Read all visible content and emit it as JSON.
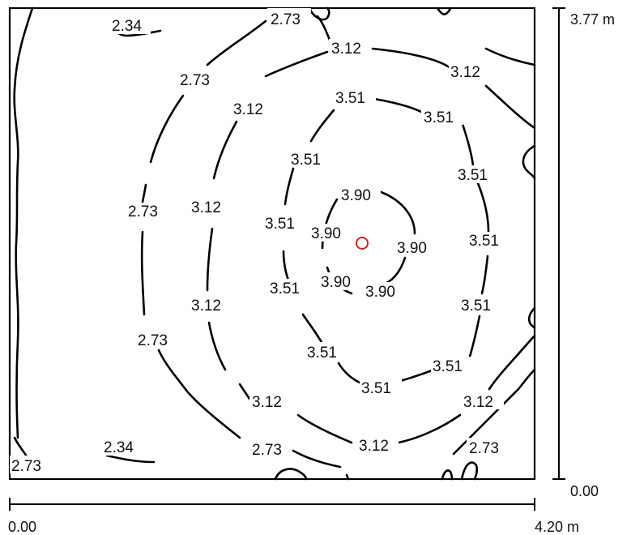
{
  "diagram": {
    "dimensions": {
      "width_start": "0.00",
      "width_end": "4.20 m",
      "height_start": "0.00",
      "height_end": "3.77 m"
    },
    "contour_levels": [
      "2.34",
      "2.73",
      "3.12",
      "3.51",
      "3.90"
    ],
    "labels": {
      "c234_top": "2.34",
      "c234_bottom": "2.34",
      "c273_top": "2.73",
      "c273_left_upper": "2.73",
      "c273_left_mid": "2.73",
      "c273_left_lower": "2.73",
      "c273_bottom_mid": "2.73",
      "c273_bottom_right": "2.73",
      "c273_bottom_left": "2.73",
      "c312_top": "3.12",
      "c312_topright": "3.12",
      "c312_upperleft": "3.12",
      "c312_left": "3.12",
      "c312_lowerleft": "3.12",
      "c312_bottomleft": "3.12",
      "c312_bottom": "3.12",
      "c312_right": "3.12",
      "c351_top": "3.51",
      "c351_topright": "3.51",
      "c351_upperleft": "3.51",
      "c351_right_upper": "3.51",
      "c351_left": "3.51",
      "c351_right": "3.51",
      "c351_lowerleft": "3.51",
      "c351_right_lower": "3.51",
      "c351_bottomleft": "3.51",
      "c351_lowerright": "3.51",
      "c351_bottom": "3.51",
      "c390_top": "3.90",
      "c390_left": "3.90",
      "c390_right": "3.90",
      "c390_bottomleft": "3.90",
      "c390_bottomright": "3.90"
    },
    "marker_color": "#d62020"
  }
}
